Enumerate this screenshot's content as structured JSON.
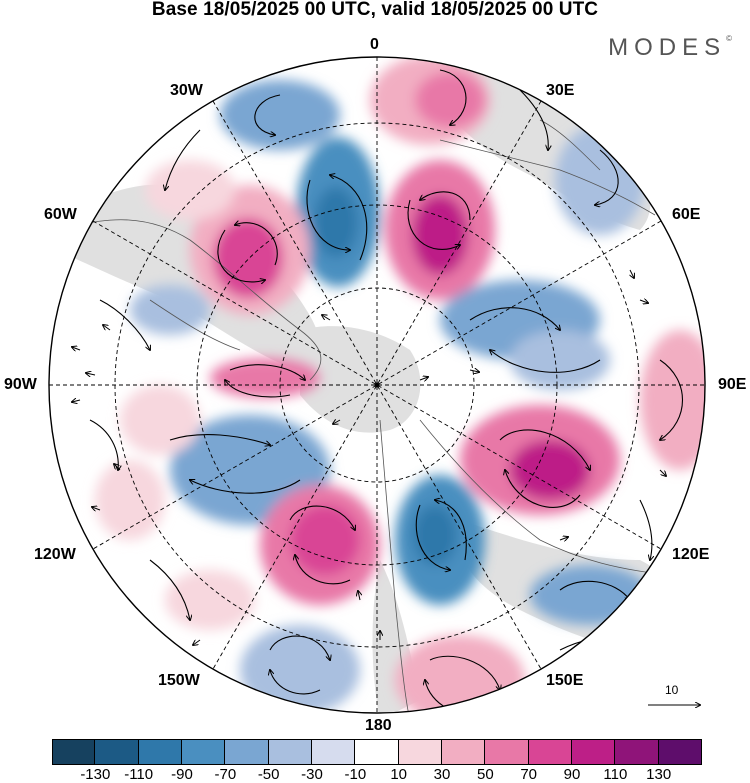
{
  "title": "Base 18/05/2025 00 UTC, valid 18/05/2025 00 UTC",
  "brand": "MODES",
  "brand_mark": "©",
  "longitude_labels": {
    "north": "0",
    "e30": "30E",
    "e60": "60E",
    "e90": "90E",
    "e120": "120E",
    "e150": "150E",
    "south": "180",
    "w150": "150W",
    "w120": "120W",
    "w90": "90W",
    "w60": "60W",
    "w30": "30W"
  },
  "reference_vector_label": "10",
  "colorbar": {
    "tick_labels": [
      "-130",
      "-110",
      "-90",
      "-70",
      "-50",
      "-30",
      "-10",
      "10",
      "30",
      "50",
      "70",
      "90",
      "110",
      "130"
    ],
    "colors": [
      "#16415f",
      "#1c5a85",
      "#2f78aa",
      "#4a8fc0",
      "#7aa6d2",
      "#a9bfdf",
      "#d6dcee",
      "#ffffff",
      "#f7d7de",
      "#f2aec2",
      "#e878a7",
      "#d94595",
      "#bd1f87",
      "#8f1479",
      "#5e0d6b"
    ]
  },
  "colors": {
    "land_gray": "#d8d8d8",
    "ocean": "#ffffff",
    "frame": "#000000"
  }
}
